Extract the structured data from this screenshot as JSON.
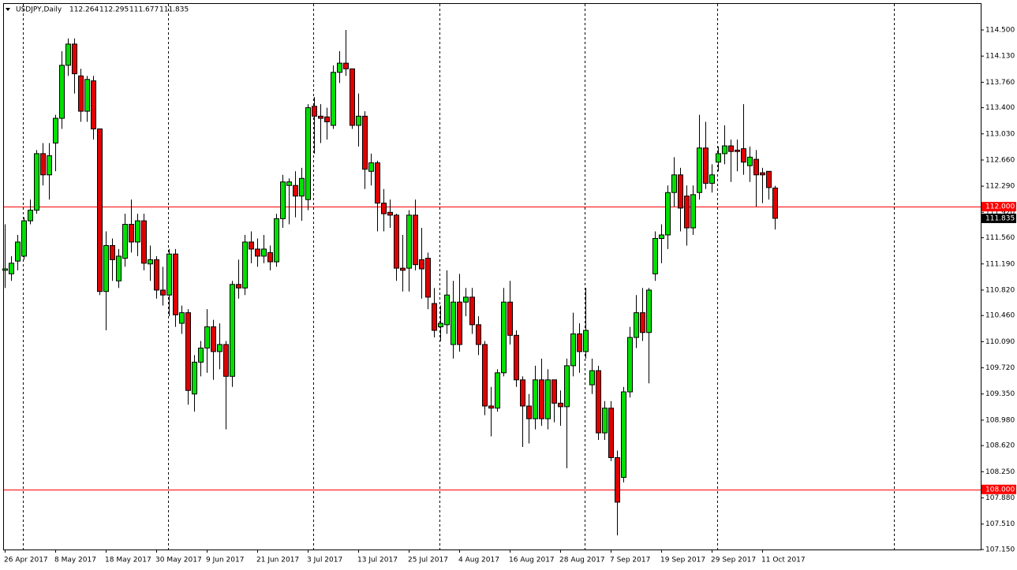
{
  "chart_data": {
    "type": "candlestick",
    "title": "USDJPY,Daily",
    "up_color": "#00e000",
    "down_color": "#e00000",
    "categories": [
      "26 Apr 2017",
      null,
      null,
      null,
      null,
      null,
      null,
      null,
      "8 May 2017",
      null,
      null,
      null,
      null,
      null,
      null,
      null,
      "18 May 2017",
      null,
      null,
      null,
      null,
      null,
      null,
      null,
      "30 May 2017",
      null,
      null,
      null,
      null,
      null,
      null,
      null,
      "9 Jun 2017",
      null,
      null,
      null,
      null,
      null,
      null,
      null,
      "21 Jun 2017",
      null,
      null,
      null,
      null,
      null,
      null,
      null,
      "3 Jul 2017",
      null,
      null,
      null,
      null,
      null,
      null,
      null,
      "13 Jul 2017",
      null,
      null,
      null,
      null,
      null,
      null,
      null,
      "25 Jul 2017",
      null,
      null,
      null,
      null,
      null,
      null,
      null,
      "4 Aug 2017",
      null,
      null,
      null,
      null,
      null,
      null,
      null,
      "16 Aug 2017",
      null,
      null,
      null,
      null,
      null,
      null,
      null,
      "28 Aug 2017",
      null,
      null,
      null,
      null,
      null,
      null,
      null,
      "7 Sep 2017",
      null,
      null,
      null,
      null,
      null,
      null,
      null,
      "19 Sep 2017",
      null,
      null,
      null,
      null,
      null,
      null,
      null,
      "29 Sep 2017",
      null,
      null,
      null,
      null,
      null,
      null,
      null,
      "11 Oct 2017",
      null,
      null
    ],
    "open": [
      111.1,
      111.05,
      111.23,
      111.3,
      111.8,
      111.95,
      112.75,
      112.45,
      112.9,
      113.25,
      114.0,
      114.3,
      113.85,
      113.35,
      113.78,
      113.1,
      110.8,
      111.45,
      110.95,
      111.27,
      111.75,
      111.5,
      111.8,
      111.19,
      111.25,
      110.82,
      110.75,
      111.33,
      110.35,
      110.5,
      109.35,
      109.8,
      110.0,
      110.3,
      109.95,
      110.05,
      109.6,
      110.9,
      110.85,
      111.5,
      111.4,
      111.3,
      111.35,
      111.22,
      111.83,
      112.3,
      112.3,
      112.15,
      112.1,
      113.42,
      113.28,
      113.27,
      113.15,
      113.9,
      114.03,
      113.95,
      113.15,
      113.28,
      112.5,
      112.62,
      112.05,
      111.92,
      111.88,
      111.13,
      111.13,
      111.88,
      111.25,
      111.27,
      110.63,
      110.3,
      110.33,
      110.05,
      110.65,
      110.65,
      110.72,
      110.33,
      110.05,
      109.18,
      109.15,
      109.65,
      110.65,
      110.18,
      109.55,
      109.18,
      109.0,
      109.55,
      109.0,
      109.55,
      109.22,
      109.17,
      109.75,
      110.2,
      109.95,
      109.48,
      109.68,
      108.8,
      109.15,
      108.45,
      108.17,
      109.38,
      110.15,
      110.5,
      110.22,
      111.05,
      111.55,
      111.6,
      112.2,
      112.45,
      112.15,
      111.7,
      112.2,
      112.83,
      112.33,
      112.63,
      112.75,
      112.86,
      112.8,
      112.82,
      112.58,
      112.67,
      112.48,
      112.5,
      112.264
    ],
    "high": [
      111.75,
      111.3,
      111.6,
      111.85,
      112.1,
      112.8,
      112.9,
      112.9,
      113.3,
      114.2,
      114.38,
      114.38,
      113.95,
      113.85,
      113.85,
      113.1,
      111.65,
      111.55,
      111.4,
      111.9,
      112.1,
      111.9,
      111.9,
      111.45,
      111.3,
      111.15,
      111.4,
      111.4,
      110.6,
      110.55,
      109.9,
      110.1,
      110.55,
      110.4,
      110.35,
      110.1,
      110.95,
      111.25,
      111.6,
      111.65,
      111.55,
      111.6,
      111.45,
      111.9,
      112.45,
      112.4,
      112.5,
      112.55,
      113.45,
      113.55,
      113.45,
      113.4,
      114.0,
      114.2,
      114.5,
      113.95,
      113.6,
      113.35,
      112.75,
      112.65,
      112.25,
      112.1,
      111.9,
      111.6,
      111.95,
      112.1,
      111.7,
      111.35,
      110.85,
      110.6,
      111.1,
      110.95,
      111.05,
      110.85,
      110.85,
      110.45,
      110.1,
      109.45,
      109.7,
      110.85,
      110.95,
      110.25,
      109.6,
      109.35,
      109.75,
      109.85,
      109.7,
      109.55,
      109.4,
      109.85,
      110.5,
      110.35,
      110.85,
      109.85,
      109.75,
      109.25,
      109.25,
      108.55,
      109.45,
      110.3,
      110.75,
      110.85,
      110.85,
      111.65,
      111.75,
      112.3,
      112.7,
      112.55,
      112.3,
      112.3,
      113.3,
      113.2,
      112.6,
      112.85,
      113.15,
      112.95,
      112.95,
      113.45,
      112.85,
      112.8,
      112.55,
      112.5,
      112.295
    ],
    "low": [
      110.85,
      110.95,
      111.1,
      111.25,
      111.75,
      111.9,
      112.3,
      112.1,
      112.5,
      113.1,
      113.85,
      113.6,
      113.2,
      113.2,
      112.95,
      110.75,
      110.25,
      110.95,
      110.85,
      111.15,
      111.35,
      111.3,
      111.1,
      110.95,
      110.7,
      110.6,
      110.45,
      110.3,
      110.2,
      109.2,
      109.1,
      109.6,
      109.65,
      109.55,
      109.7,
      108.85,
      109.45,
      110.7,
      110.75,
      111.2,
      111.15,
      111.2,
      111.1,
      111.15,
      111.7,
      111.75,
      111.85,
      111.8,
      111.95,
      112.75,
      112.9,
      112.95,
      113.1,
      113.75,
      113.85,
      113.1,
      112.85,
      112.25,
      112.3,
      111.65,
      111.65,
      111.7,
      110.95,
      110.8,
      110.8,
      111.1,
      110.7,
      110.55,
      110.15,
      110.1,
      110.2,
      109.85,
      109.95,
      110.45,
      110.2,
      109.9,
      109.05,
      108.75,
      109.1,
      109.6,
      110.05,
      109.45,
      108.6,
      108.65,
      108.85,
      108.9,
      108.85,
      108.95,
      108.9,
      108.3,
      109.6,
      109.65,
      109.85,
      109.35,
      108.7,
      108.7,
      108.4,
      107.35,
      108.1,
      109.3,
      110.0,
      110.1,
      109.5,
      110.95,
      111.2,
      111.4,
      112.0,
      111.65,
      111.45,
      111.6,
      112.1,
      112.25,
      112.2,
      112.5,
      112.6,
      112.35,
      112.5,
      112.45,
      112.35,
      112.0,
      112.05,
      112.1,
      111.677
    ],
    "close": [
      111.12,
      111.2,
      111.5,
      111.8,
      111.95,
      112.75,
      112.45,
      112.72,
      113.25,
      114.0,
      114.3,
      113.88,
      113.35,
      113.8,
      113.1,
      110.8,
      111.45,
      111.25,
      111.3,
      111.75,
      111.5,
      111.8,
      111.2,
      111.25,
      110.82,
      110.75,
      111.33,
      110.47,
      110.5,
      109.4,
      109.8,
      110.0,
      110.3,
      109.95,
      110.05,
      109.6,
      110.9,
      110.85,
      111.5,
      111.4,
      111.3,
      111.4,
      111.22,
      111.83,
      112.35,
      112.35,
      112.15,
      112.4,
      113.4,
      113.28,
      113.25,
      113.2,
      113.9,
      114.03,
      113.95,
      113.15,
      113.28,
      112.53,
      112.62,
      112.05,
      111.9,
      111.88,
      111.13,
      111.1,
      111.88,
      111.18,
      111.12,
      110.72,
      110.25,
      110.35,
      110.75,
      110.65,
      110.05,
      110.72,
      110.33,
      110.05,
      109.18,
      109.15,
      109.65,
      110.65,
      110.18,
      109.55,
      109.18,
      109.0,
      109.55,
      109.0,
      109.55,
      109.22,
      109.17,
      109.75,
      110.2,
      109.95,
      110.25,
      109.68,
      108.8,
      109.15,
      108.45,
      107.82,
      109.38,
      110.15,
      110.5,
      110.22,
      110.82,
      111.55,
      111.6,
      112.2,
      112.45,
      111.98,
      111.7,
      112.17,
      112.83,
      112.33,
      112.45,
      112.75,
      112.86,
      112.78,
      112.78,
      112.63,
      112.7,
      112.45,
      112.45,
      112.27,
      111.835
    ],
    "ylim": [
      107.15,
      114.879
    ],
    "yticks": [
      {
        "value": 114.5,
        "label": "114.500"
      },
      {
        "value": 114.13,
        "label": "114.130"
      },
      {
        "value": 113.76,
        "label": "113.760"
      },
      {
        "value": 113.4,
        "label": "113.400"
      },
      {
        "value": 113.03,
        "label": "113.030"
      },
      {
        "value": 112.66,
        "label": "112.660"
      },
      {
        "value": 112.29,
        "label": "112.290"
      },
      {
        "value": 111.92,
        "label": "111.920"
      },
      {
        "value": 111.56,
        "label": "111.560"
      },
      {
        "value": 111.19,
        "label": "111.190"
      },
      {
        "value": 110.82,
        "label": "110.820"
      },
      {
        "value": 110.46,
        "label": "110.460"
      },
      {
        "value": 110.09,
        "label": "110.090"
      },
      {
        "value": 109.72,
        "label": "109.720"
      },
      {
        "value": 109.35,
        "label": "109.350"
      },
      {
        "value": 108.98,
        "label": "108.980"
      },
      {
        "value": 108.62,
        "label": "108.620"
      },
      {
        "value": 108.25,
        "label": "108.250"
      },
      {
        "value": 107.88,
        "label": "107.880"
      },
      {
        "value": 107.51,
        "label": "107.510"
      },
      {
        "value": 107.15,
        "label": "107.150"
      }
    ],
    "hlines": [
      {
        "value": 112,
        "label": "112.000",
        "color": "#ff0000"
      },
      {
        "value": 108,
        "label": "108.000",
        "color": "#ff0000"
      }
    ],
    "grid": false
  }
}
